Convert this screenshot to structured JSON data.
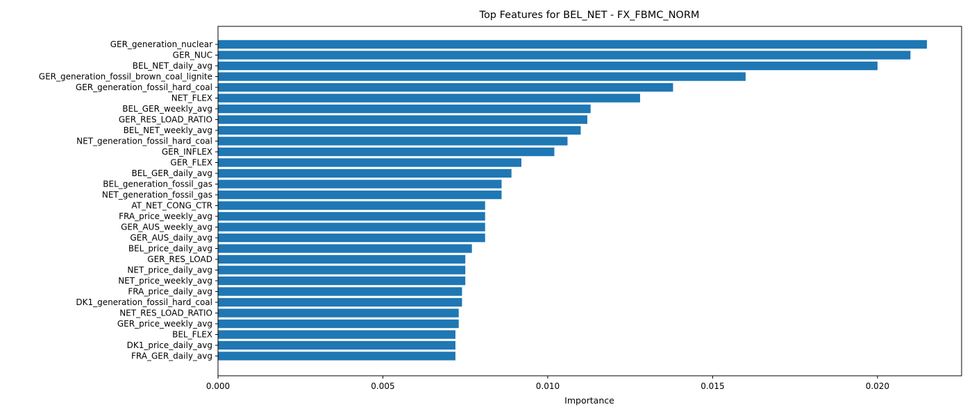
{
  "chart_data": {
    "type": "bar",
    "orientation": "horizontal",
    "title": "Top Features for BEL_NET - FX_FBMC_NORM",
    "xlabel": "Importance",
    "ylabel": "",
    "xlim": [
      0,
      0.02255
    ],
    "xticks": [
      "0.000",
      "0.005",
      "0.010",
      "0.015",
      "0.020"
    ],
    "xtick_values": [
      0,
      0.005,
      0.01,
      0.015,
      0.02
    ],
    "grid": false,
    "bar_color": "#1f77b4",
    "categories": [
      "GER_generation_nuclear",
      "GER_NUC",
      "BEL_NET_daily_avg",
      "GER_generation_fossil_brown_coal_lignite",
      "GER_generation_fossil_hard_coal",
      "NET_FLEX",
      "BEL_GER_weekly_avg",
      "GER_RES_LOAD_RATIO",
      "BEL_NET_weekly_avg",
      "NET_generation_fossil_hard_coal",
      "GER_INFLEX",
      "GER_FLEX",
      "BEL_GER_daily_avg",
      "BEL_generation_fossil_gas",
      "NET_generation_fossil_gas",
      "AT_NET_CONG_CTR",
      "FRA_price_weekly_avg",
      "GER_AUS_weekly_avg",
      "GER_AUS_daily_avg",
      "BEL_price_daily_avg",
      "GER_RES_LOAD",
      "NET_price_daily_avg",
      "NET_price_weekly_avg",
      "FRA_price_daily_avg",
      "DK1_generation_fossil_hard_coal",
      "NET_RES_LOAD_RATIO",
      "GER_price_weekly_avg",
      "BEL_FLEX",
      "DK1_price_daily_avg",
      "FRA_GER_daily_avg"
    ],
    "values": [
      0.0215,
      0.021,
      0.02,
      0.016,
      0.0138,
      0.0128,
      0.0113,
      0.0112,
      0.011,
      0.0106,
      0.0102,
      0.0092,
      0.0089,
      0.0086,
      0.0086,
      0.0081,
      0.0081,
      0.0081,
      0.0081,
      0.0077,
      0.0075,
      0.0075,
      0.0075,
      0.0074,
      0.0074,
      0.0073,
      0.0073,
      0.0072,
      0.0072,
      0.0072
    ]
  }
}
